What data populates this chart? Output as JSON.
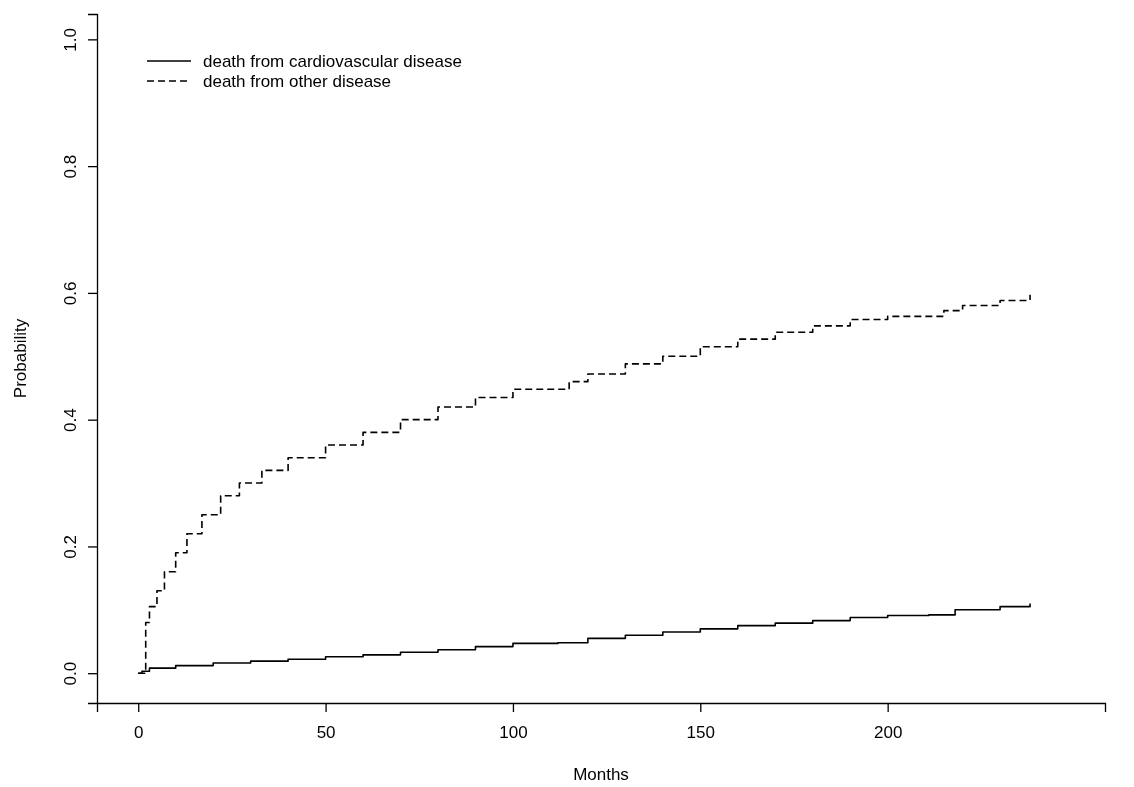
{
  "chart_data": {
    "type": "step",
    "xlabel": "Months",
    "ylabel": "Probability",
    "xlim": [
      -11,
      258
    ],
    "ylim": [
      -0.047,
      1.04
    ],
    "xticks": [
      0,
      50,
      100,
      150,
      200
    ],
    "yticks": [
      {
        "value": 0,
        "label": "0.0"
      },
      {
        "value": 0.2,
        "label": "0.2"
      },
      {
        "value": 0.4,
        "label": "0.4"
      },
      {
        "value": 0.6,
        "label": "0.6"
      },
      {
        "value": 0.8,
        "label": "0.8"
      },
      {
        "value": 1,
        "label": "1.0"
      }
    ],
    "grid": false,
    "legend": "top left",
    "marker": "none",
    "series": [
      {
        "name": "death from cardiovascular disease",
        "color": "#000000",
        "line_style": "solid",
        "x": [
          0,
          1,
          3,
          10,
          20,
          30,
          40,
          50,
          60,
          70,
          80,
          90,
          100,
          112,
          120,
          130,
          140,
          150,
          160,
          170,
          180,
          190,
          200,
          211,
          218,
          230,
          238
        ],
        "values": [
          0,
          0.003,
          0.008,
          0.012,
          0.016,
          0.019,
          0.022,
          0.026,
          0.029,
          0.033,
          0.037,
          0.042,
          0.047,
          0.048,
          0.055,
          0.06,
          0.065,
          0.07,
          0.075,
          0.079,
          0.083,
          0.088,
          0.091,
          0.092,
          0.1,
          0.105,
          0.11
        ]
      },
      {
        "name": "death from other disease",
        "color": "#000000",
        "line_style": "dashed",
        "x": [
          0,
          1.5,
          2,
          3,
          5,
          7,
          10,
          13,
          17,
          22,
          27,
          33,
          40,
          50,
          60,
          70,
          80,
          90,
          100,
          111,
          115,
          120,
          130,
          140,
          150,
          160,
          170,
          180,
          190,
          200,
          211,
          215,
          220,
          230,
          238
        ],
        "values": [
          0,
          0,
          0.08,
          0.105,
          0.13,
          0.16,
          0.19,
          0.22,
          0.25,
          0.28,
          0.3,
          0.32,
          0.34,
          0.36,
          0.38,
          0.4,
          0.42,
          0.435,
          0.448,
          0.448,
          0.46,
          0.472,
          0.488,
          0.5,
          0.515,
          0.527,
          0.538,
          0.548,
          0.558,
          0.563,
          0.563,
          0.572,
          0.58,
          0.588,
          0.597
        ]
      }
    ]
  }
}
